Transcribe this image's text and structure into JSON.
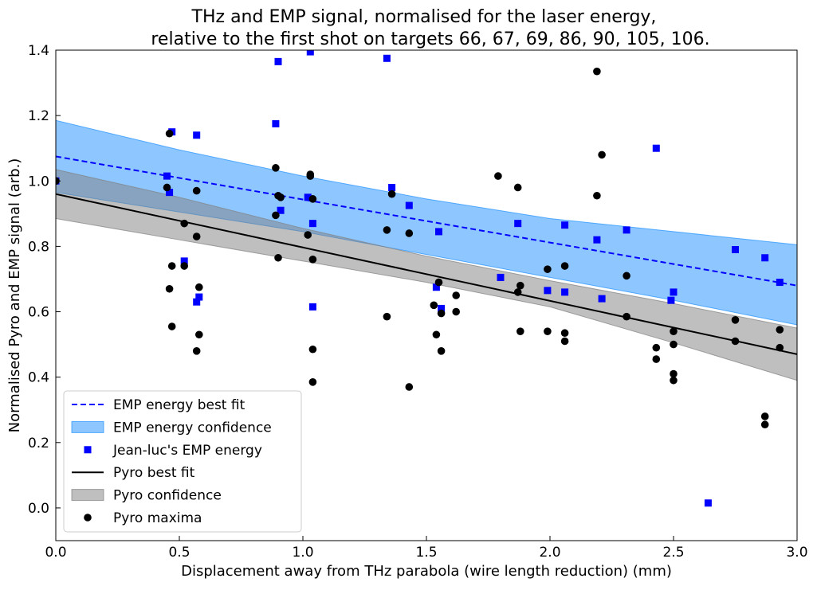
{
  "chart_data": {
    "type": "scatter",
    "title_line1": "THz and EMP signal, normalised for the laser energy,",
    "title_line2": "relative to the first shot on targets 66, 67, 69, 86, 90, 105, 106.",
    "xlabel": "Displacement away from THz parabola (wire length reduction) (mm)",
    "ylabel": "Normalised Pyro and EMP signal (arb.)",
    "xlim": [
      0.0,
      3.0
    ],
    "ylim": [
      -0.1,
      1.4
    ],
    "x_ticks": [
      0.0,
      0.5,
      1.0,
      1.5,
      2.0,
      2.5,
      3.0
    ],
    "x_tick_labels": [
      "0.0",
      "0.5",
      "1.0",
      "1.5",
      "2.0",
      "2.5",
      "3.0"
    ],
    "y_ticks": [
      0.0,
      0.2,
      0.4,
      0.6,
      0.8,
      1.0,
      1.2,
      1.4
    ],
    "y_tick_labels": [
      "0.0",
      "0.2",
      "0.4",
      "0.6",
      "0.8",
      "1.0",
      "1.2",
      "1.4"
    ],
    "grid": false,
    "legend_position": "lower-left",
    "colors": {
      "emp_fit": "#0000ff",
      "emp_band": "#1e90ff",
      "emp_points": "#0000ff",
      "pyro_fit": "#000000",
      "pyro_band": "#808080",
      "pyro_points": "#000000"
    },
    "series": [
      {
        "name": "EMP energy best fit",
        "kind": "line",
        "style": "dashed",
        "x": [
          0.0,
          3.0
        ],
        "y": [
          1.075,
          0.68
        ]
      },
      {
        "name": "EMP energy confidence",
        "kind": "band",
        "x": [
          0.0,
          0.5,
          1.0,
          1.5,
          2.0,
          2.5,
          3.0
        ],
        "lower": [
          0.965,
          0.905,
          0.845,
          0.775,
          0.705,
          0.635,
          0.56
        ],
        "upper": [
          1.185,
          1.095,
          1.015,
          0.945,
          0.885,
          0.845,
          0.805
        ]
      },
      {
        "name": "Jean-luc's EMP energy",
        "kind": "scatter",
        "marker": "square",
        "x": [
          0.0,
          0.45,
          0.46,
          0.47,
          0.52,
          0.57,
          0.57,
          0.58,
          0.89,
          0.9,
          0.91,
          1.02,
          1.03,
          1.04,
          1.04,
          1.34,
          1.36,
          1.43,
          1.54,
          1.55,
          1.56,
          1.8,
          1.87,
          1.99,
          2.06,
          2.06,
          2.19,
          2.21,
          2.31,
          2.43,
          2.49,
          2.5,
          2.64,
          2.75,
          2.87,
          2.93
        ],
        "y": [
          1.0,
          1.015,
          0.965,
          1.15,
          0.755,
          1.14,
          0.63,
          0.645,
          1.175,
          1.365,
          0.91,
          0.95,
          1.395,
          0.87,
          0.615,
          1.375,
          0.98,
          0.925,
          0.675,
          0.845,
          0.61,
          0.705,
          0.87,
          0.665,
          0.865,
          0.66,
          0.82,
          0.64,
          0.85,
          1.1,
          0.635,
          0.66,
          0.015,
          0.79,
          0.765,
          0.69
        ]
      },
      {
        "name": "Pyro best fit",
        "kind": "line",
        "style": "solid",
        "x": [
          0.0,
          3.0
        ],
        "y": [
          0.96,
          0.47
        ]
      },
      {
        "name": "Pyro confidence",
        "kind": "band",
        "x": [
          0.0,
          0.5,
          1.0,
          1.5,
          2.0,
          2.5,
          3.0
        ],
        "lower": [
          0.885,
          0.82,
          0.755,
          0.69,
          0.615,
          0.505,
          0.39
        ],
        "upper": [
          1.035,
          0.95,
          0.855,
          0.77,
          0.695,
          0.625,
          0.55
        ]
      },
      {
        "name": "Pyro maxima",
        "kind": "scatter",
        "marker": "circle",
        "x": [
          0.0,
          0.45,
          0.46,
          0.46,
          0.47,
          0.47,
          0.52,
          0.52,
          0.57,
          0.57,
          0.57,
          0.58,
          0.58,
          0.89,
          0.89,
          0.9,
          0.9,
          0.91,
          1.02,
          1.03,
          1.03,
          1.04,
          1.04,
          1.04,
          1.04,
          1.34,
          1.34,
          1.36,
          1.43,
          1.43,
          1.53,
          1.54,
          1.55,
          1.56,
          1.56,
          1.62,
          1.62,
          1.79,
          1.87,
          1.87,
          1.88,
          1.88,
          1.99,
          1.99,
          2.06,
          2.06,
          2.06,
          2.19,
          2.19,
          2.21,
          2.31,
          2.31,
          2.43,
          2.43,
          2.5,
          2.5,
          2.5,
          2.5,
          2.75,
          2.75,
          2.87,
          2.87,
          2.93,
          2.93
        ],
        "y": [
          1.0,
          0.98,
          1.145,
          0.67,
          0.74,
          0.555,
          0.87,
          0.74,
          0.97,
          0.83,
          0.48,
          0.675,
          0.53,
          1.04,
          0.895,
          0.955,
          0.765,
          0.95,
          0.835,
          1.02,
          1.015,
          0.945,
          0.76,
          0.485,
          0.385,
          0.85,
          0.585,
          0.96,
          0.84,
          0.37,
          0.62,
          0.53,
          0.69,
          0.595,
          0.48,
          0.65,
          0.6,
          1.015,
          0.98,
          0.66,
          0.68,
          0.54,
          0.73,
          0.54,
          0.74,
          0.535,
          0.51,
          1.335,
          0.955,
          1.08,
          0.71,
          0.585,
          0.49,
          0.455,
          0.54,
          0.5,
          0.41,
          0.39,
          0.575,
          0.51,
          0.28,
          0.255,
          0.545,
          0.49
        ]
      }
    ],
    "legend": [
      {
        "label": "EMP energy best fit",
        "symbol": "dashed-line",
        "color": "#0000ff"
      },
      {
        "label": "EMP energy confidence",
        "symbol": "patch",
        "color": "#1e90ff"
      },
      {
        "label": "Jean-luc's EMP energy",
        "symbol": "square",
        "color": "#0000ff"
      },
      {
        "label": "Pyro best fit",
        "symbol": "solid-line",
        "color": "#000000"
      },
      {
        "label": "Pyro confidence",
        "symbol": "patch",
        "color": "#808080"
      },
      {
        "label": "Pyro maxima",
        "symbol": "circle",
        "color": "#000000"
      }
    ]
  }
}
